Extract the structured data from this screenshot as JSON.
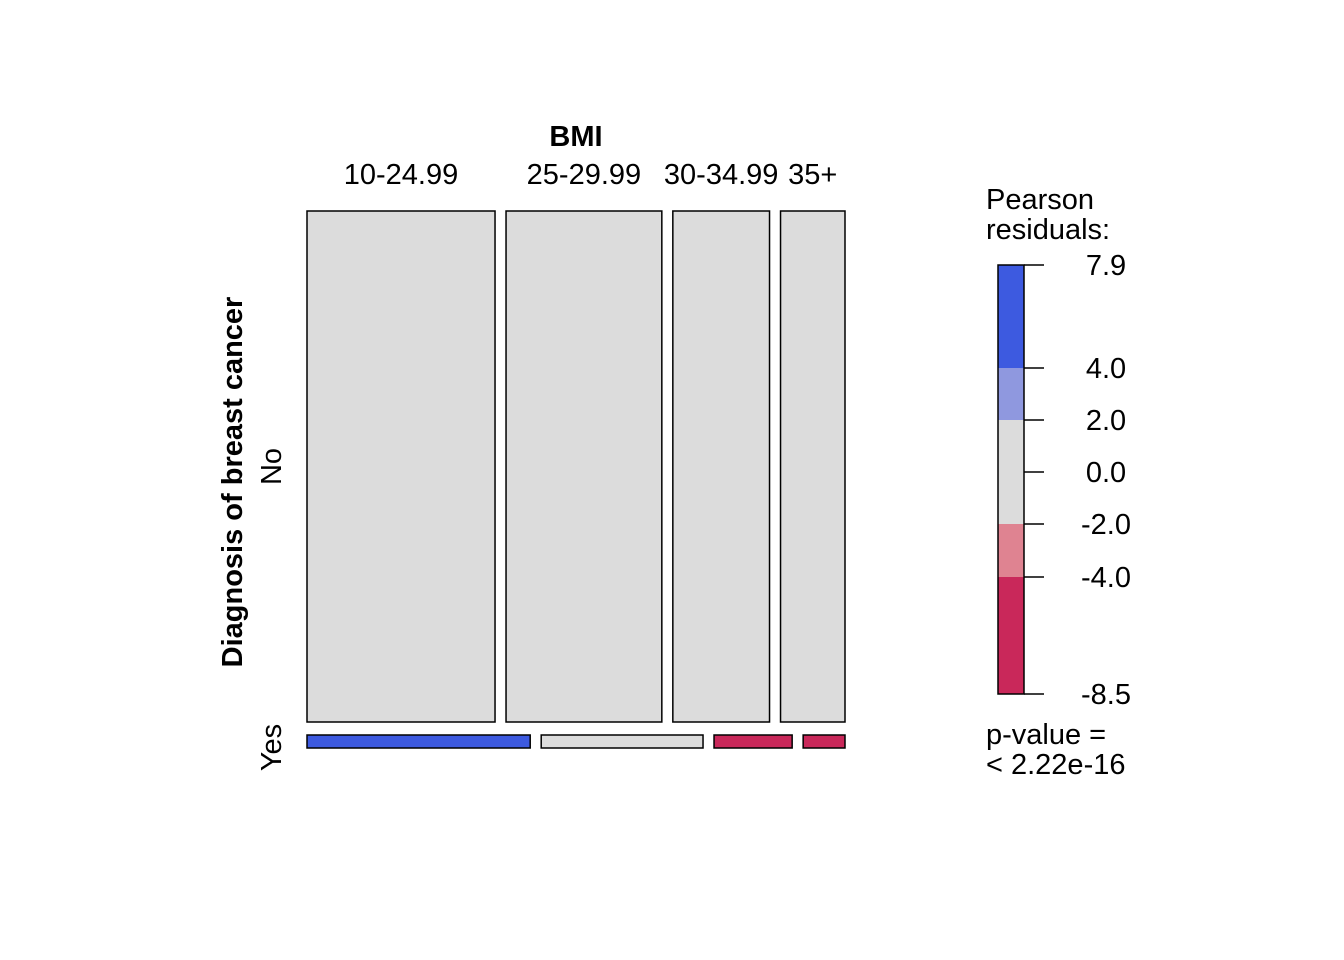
{
  "chart_data": {
    "type": "mosaic",
    "title": "BMI",
    "xlabel": "BMI",
    "ylabel": "Diagnosis of breast cancer",
    "columns": [
      "10-24.99",
      "25-29.99",
      "30-34.99",
      "35+"
    ],
    "rows": [
      "No",
      "Yes"
    ],
    "column_share": [
      0.35,
      0.29,
      0.18,
      0.12
    ],
    "yes_share": [
      0.4,
      0.29,
      0.14,
      0.075
    ],
    "no_share_of_total": 0.97,
    "residual_class": {
      "No": [
        "neutral",
        "neutral",
        "neutral",
        "neutral"
      ],
      "Yes": [
        "strong_pos",
        "neutral",
        "strong_neg",
        "strong_neg"
      ]
    },
    "legend": {
      "title_line1": "Pearson",
      "title_line2": "residuals:",
      "ticks": [
        "7.9",
        "4.0",
        "2.0",
        "0.0",
        "-2.0",
        "-4.0",
        "-8.5"
      ],
      "range": [
        -8.5,
        7.9
      ],
      "tick_values": [
        7.9,
        4.0,
        2.0,
        0.0,
        -2.0,
        -4.0,
        -8.5
      ],
      "bands": [
        {
          "from": 4.0,
          "to": 7.9,
          "color": "#3d5ae0"
        },
        {
          "from": 2.0,
          "to": 4.0,
          "color": "#8f98df"
        },
        {
          "from": -2.0,
          "to": 2.0,
          "color": "#dcdcdc"
        },
        {
          "from": -4.0,
          "to": -2.0,
          "color": "#df8391"
        },
        {
          "from": -8.5,
          "to": -4.0,
          "color": "#c9285a"
        }
      ]
    },
    "pvalue_line1": "p-value =",
    "pvalue_line2": "< 2.22e-16"
  },
  "colors": {
    "strong_pos": "#3d5ae0",
    "pos": "#8f98df",
    "neutral": "#dcdcdc",
    "neg": "#df8391",
    "strong_neg": "#c9285a"
  }
}
